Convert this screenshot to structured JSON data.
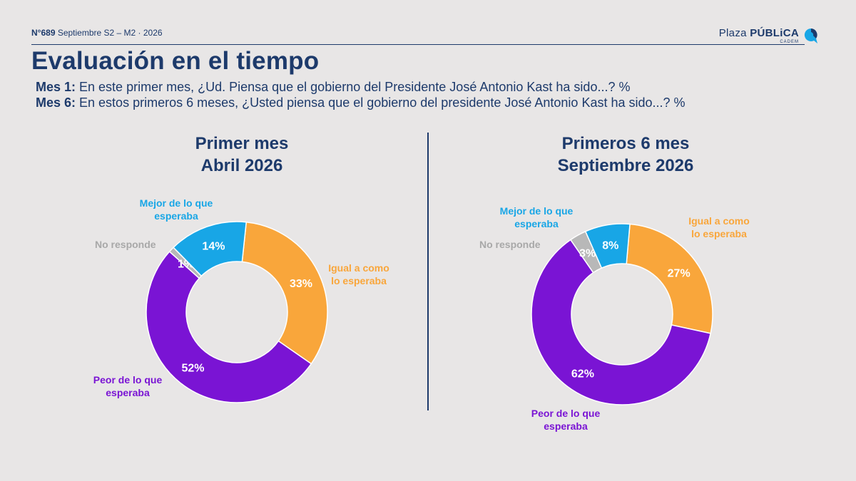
{
  "header": {
    "issue": "N°689",
    "issue_rest": " Septiembre S2 – M2 · 2026",
    "logo_plaza": "Plaza ",
    "logo_publica": "PÚBLiCA",
    "logo_sub": "CADEM"
  },
  "title": "Evaluación en el tiempo",
  "questions": {
    "q1_label": "Mes 1:",
    "q1_text": " En este primer mes, ¿Ud. Piensa que el gobierno del Presidente José Antonio Kast ha sido...? %",
    "q2_label": "Mes 6:",
    "q2_text": " En estos primeros 6 meses, ¿Usted piensa que el gobierno del presidente José Antonio Kast ha sido...? %"
  },
  "colors": {
    "mejor": "#18a6e6",
    "igual": "#f9a63b",
    "peor": "#7a14d4",
    "no_responde": "#b8b8b8",
    "navy": "#1d3a6b"
  },
  "chart_data": [
    {
      "type": "pie",
      "variant": "donut",
      "title_line1": "Primer mes",
      "title_line2": "Abril 2026",
      "slices": [
        {
          "key": "mejor",
          "label_line1": "Mejor de lo que",
          "label_line2": "esperaba",
          "value": 14,
          "value_text": "14%"
        },
        {
          "key": "igual",
          "label_line1": "Igual a como",
          "label_line2": "lo esperaba",
          "value": 33,
          "value_text": "33%"
        },
        {
          "key": "peor",
          "label_line1": "Peor de lo que",
          "label_line2": "esperaba",
          "value": 52,
          "value_text": "52%"
        },
        {
          "key": "no_responde",
          "label_line1": "No responde",
          "label_line2": "",
          "value": 1,
          "value_text": "1%"
        }
      ]
    },
    {
      "type": "pie",
      "variant": "donut",
      "title_line1": "Primeros 6 mes",
      "title_line2": "Septiembre 2026",
      "slices": [
        {
          "key": "mejor",
          "label_line1": "Mejor de lo que",
          "label_line2": "esperaba",
          "value": 8,
          "value_text": "8%"
        },
        {
          "key": "igual",
          "label_line1": "Igual a como",
          "label_line2": "lo esperaba",
          "value": 27,
          "value_text": "27%"
        },
        {
          "key": "peor",
          "label_line1": "Peor de lo que",
          "label_line2": "esperaba",
          "value": 62,
          "value_text": "62%"
        },
        {
          "key": "no_responde",
          "label_line1": "No responde",
          "label_line2": "",
          "value": 3,
          "value_text": "3%"
        }
      ]
    }
  ]
}
